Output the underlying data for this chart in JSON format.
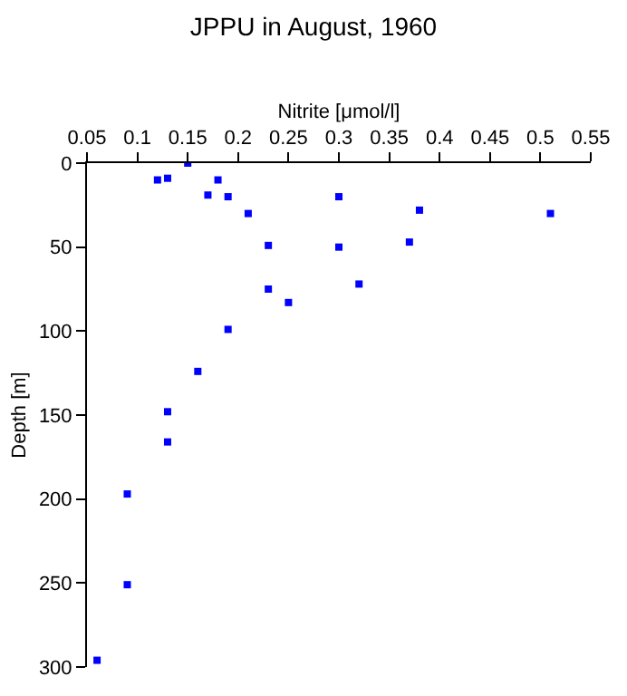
{
  "chart_data": {
    "type": "scatter",
    "title": "JPPU in August, 1960",
    "xlabel": "Nitrite [μmol/l]",
    "ylabel": "Depth [m]",
    "x": [
      0.12,
      0.13,
      0.15,
      0.18,
      0.17,
      0.19,
      0.3,
      0.21,
      0.38,
      0.51,
      0.23,
      0.3,
      0.37,
      0.23,
      0.32,
      0.25,
      0.19,
      0.16,
      0.13,
      0.13,
      0.09,
      0.09,
      0.06
    ],
    "series": [
      {
        "color": "#0000ff",
        "values": [
          10,
          9,
          0,
          10,
          19,
          20,
          20,
          30,
          28,
          30,
          49,
          50,
          47,
          75,
          72,
          83,
          99,
          124,
          148,
          166,
          197,
          251,
          296
        ]
      }
    ],
    "xlim": [
      0.05,
      0.55
    ],
    "xticks": [
      0.05,
      0.1,
      0.15,
      0.2,
      0.25,
      0.3,
      0.35,
      0.4,
      0.45,
      0.5,
      0.55
    ],
    "ylim": [
      300,
      0
    ],
    "yticks": [
      0,
      50,
      100,
      150,
      200,
      250,
      300
    ],
    "marker": "square"
  }
}
